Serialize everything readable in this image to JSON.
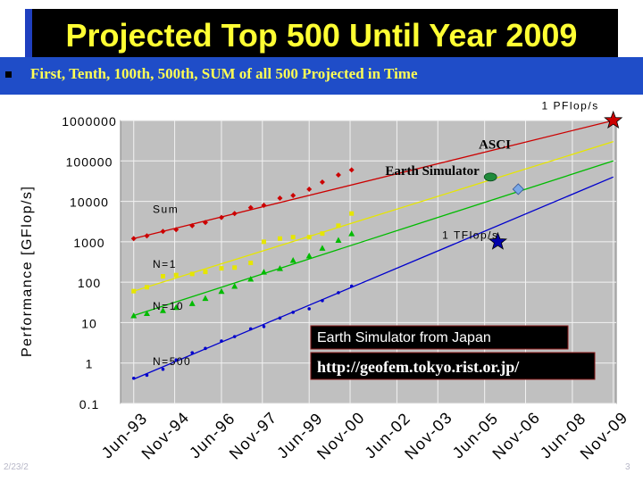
{
  "slide": {
    "title": "Projected Top 500 Until Year 2009",
    "subtitle": "First, Tenth, 100th, 500th, SUM of all 500 Projected in Time",
    "footer_left": "2/23/2",
    "footer_right": "3"
  },
  "colors": {
    "title_text": "#ffff33",
    "title_bg": "#000000",
    "band_bg": "#1f4dc8",
    "plot_bg": "#c0c0c0",
    "sum": "#cc0000",
    "n1": "#e6e600",
    "n10": "#00bb00",
    "n500": "#0000cc"
  },
  "chart_data": {
    "type": "scatter",
    "ylabel": "Performance [GFlop/s]",
    "yscale": "log",
    "ylim": [
      0.1,
      1000000
    ],
    "xlim": [
      1993.0,
      2009.95
    ],
    "yticks": [
      {
        "value": 1000000,
        "label": "1000000"
      },
      {
        "value": 100000,
        "label": "100000"
      },
      {
        "value": 10000,
        "label": "10000"
      },
      {
        "value": 1000,
        "label": "1000"
      },
      {
        "value": 100,
        "label": "100"
      },
      {
        "value": 10,
        "label": "10"
      },
      {
        "value": 1,
        "label": "1"
      },
      {
        "value": 0.1,
        "label": "0.1"
      }
    ],
    "xticks": [
      {
        "x": 1993.45,
        "label": "Jun-93"
      },
      {
        "x": 1994.85,
        "label": "Nov-94"
      },
      {
        "x": 1996.45,
        "label": "Jun-96"
      },
      {
        "x": 1997.85,
        "label": "Nov-97"
      },
      {
        "x": 1999.45,
        "label": "Jun-99"
      },
      {
        "x": 2000.85,
        "label": "Nov-00"
      },
      {
        "x": 2002.45,
        "label": "Jun-02"
      },
      {
        "x": 2003.85,
        "label": "Nov-03"
      },
      {
        "x": 2005.45,
        "label": "Jun-05"
      },
      {
        "x": 2006.85,
        "label": "Nov-06"
      },
      {
        "x": 2008.45,
        "label": "Jun-08"
      },
      {
        "x": 2009.85,
        "label": "Nov-09"
      }
    ],
    "grid": true,
    "series": [
      {
        "name": "Sum",
        "color": "#cc0000",
        "marker": "diamond",
        "trend": [
          [
            1993.45,
            1200
          ],
          [
            2009.85,
            1000000
          ]
        ],
        "points": [
          [
            1993.45,
            1200
          ],
          [
            1993.9,
            1400
          ],
          [
            1994.45,
            1800
          ],
          [
            1994.9,
            2000
          ],
          [
            1995.45,
            2500
          ],
          [
            1995.9,
            3000
          ],
          [
            1996.45,
            4000
          ],
          [
            1996.9,
            5000
          ],
          [
            1997.45,
            7000
          ],
          [
            1997.9,
            8000
          ],
          [
            1998.45,
            12000
          ],
          [
            1998.9,
            14000
          ],
          [
            1999.45,
            20000
          ],
          [
            1999.9,
            30000
          ],
          [
            2000.45,
            45000
          ],
          [
            2000.9,
            60000
          ]
        ]
      },
      {
        "name": "N=1",
        "color": "#e6e600",
        "marker": "square",
        "trend": [
          [
            1993.45,
            60
          ],
          [
            2009.85,
            300000
          ]
        ],
        "points": [
          [
            1993.45,
            60
          ],
          [
            1993.9,
            75
          ],
          [
            1994.45,
            140
          ],
          [
            1994.9,
            150
          ],
          [
            1995.45,
            160
          ],
          [
            1995.9,
            180
          ],
          [
            1996.45,
            220
          ],
          [
            1996.9,
            230
          ],
          [
            1997.45,
            300
          ],
          [
            1997.9,
            1000
          ],
          [
            1998.45,
            1200
          ],
          [
            1998.9,
            1300
          ],
          [
            1999.45,
            1300
          ],
          [
            1999.9,
            1600
          ],
          [
            2000.45,
            2500
          ],
          [
            2000.9,
            5000
          ]
        ]
      },
      {
        "name": "N=10",
        "color": "#00bb00",
        "marker": "triangle",
        "trend": [
          [
            1993.45,
            15
          ],
          [
            2009.85,
            100000
          ]
        ],
        "points": [
          [
            1993.45,
            15
          ],
          [
            1993.9,
            17
          ],
          [
            1994.45,
            20
          ],
          [
            1994.9,
            24
          ],
          [
            1995.45,
            30
          ],
          [
            1995.9,
            40
          ],
          [
            1996.45,
            60
          ],
          [
            1996.9,
            80
          ],
          [
            1997.45,
            120
          ],
          [
            1997.9,
            180
          ],
          [
            1998.45,
            220
          ],
          [
            1998.9,
            350
          ],
          [
            1999.45,
            450
          ],
          [
            1999.9,
            700
          ],
          [
            2000.45,
            1100
          ],
          [
            2000.9,
            1600
          ]
        ]
      },
      {
        "name": "N=500",
        "color": "#0000cc",
        "marker": "dot",
        "trend": [
          [
            1993.45,
            0.4
          ],
          [
            2009.85,
            40000
          ]
        ],
        "points": [
          [
            1993.45,
            0.42
          ],
          [
            1993.9,
            0.5
          ],
          [
            1994.45,
            0.7
          ],
          [
            1994.9,
            1.2
          ],
          [
            1995.45,
            1.8
          ],
          [
            1995.9,
            2.3
          ],
          [
            1996.45,
            3.5
          ],
          [
            1996.9,
            4.5
          ],
          [
            1997.45,
            7
          ],
          [
            1997.9,
            8
          ],
          [
            1998.45,
            13
          ],
          [
            1998.9,
            18
          ],
          [
            1999.45,
            22
          ],
          [
            1999.9,
            35
          ],
          [
            2000.45,
            55
          ],
          [
            2000.9,
            80
          ]
        ]
      }
    ],
    "special_points": [
      {
        "label": "ASCI",
        "x": 2006.6,
        "y": 20000,
        "shape": "diamond",
        "color": "#7aa8e6"
      },
      {
        "label": "Earth Simulator",
        "x": 2005.65,
        "y": 40000,
        "shape": "ellipse",
        "color": "#1f8a3a"
      },
      {
        "label": "1 PFlop/s",
        "x": 2009.85,
        "y": 1000000,
        "shape": "star",
        "color": "#cc0000"
      },
      {
        "label": "1 TFlop/s",
        "x": 2005.9,
        "y": 1000,
        "shape": "star",
        "color": "#0000aa"
      }
    ],
    "annotations": [
      {
        "text": "Sum",
        "x": 1994.1,
        "y": 5200
      },
      {
        "text": "N=1",
        "x": 1994.1,
        "y": 230
      },
      {
        "text": "N=10",
        "x": 1994.1,
        "y": 21
      },
      {
        "text": "N=500",
        "x": 1994.1,
        "y": 0.9
      },
      {
        "text": "1 PFlop/s",
        "x": 2007.4,
        "y": 1900000
      },
      {
        "text": "1 TFlop/s",
        "x": 2004.0,
        "y": 1200
      },
      {
        "text": "ASCI",
        "x": 2005.25,
        "y": 200000
      },
      {
        "text": "Earth Simulator",
        "x": 2002.05,
        "y": 45000
      }
    ],
    "callouts": [
      {
        "text": "Earth Simulator from Japan",
        "kind": "sans"
      },
      {
        "text": "http://geofem.tokyo.rist.or.jp/",
        "kind": "serif"
      }
    ]
  }
}
